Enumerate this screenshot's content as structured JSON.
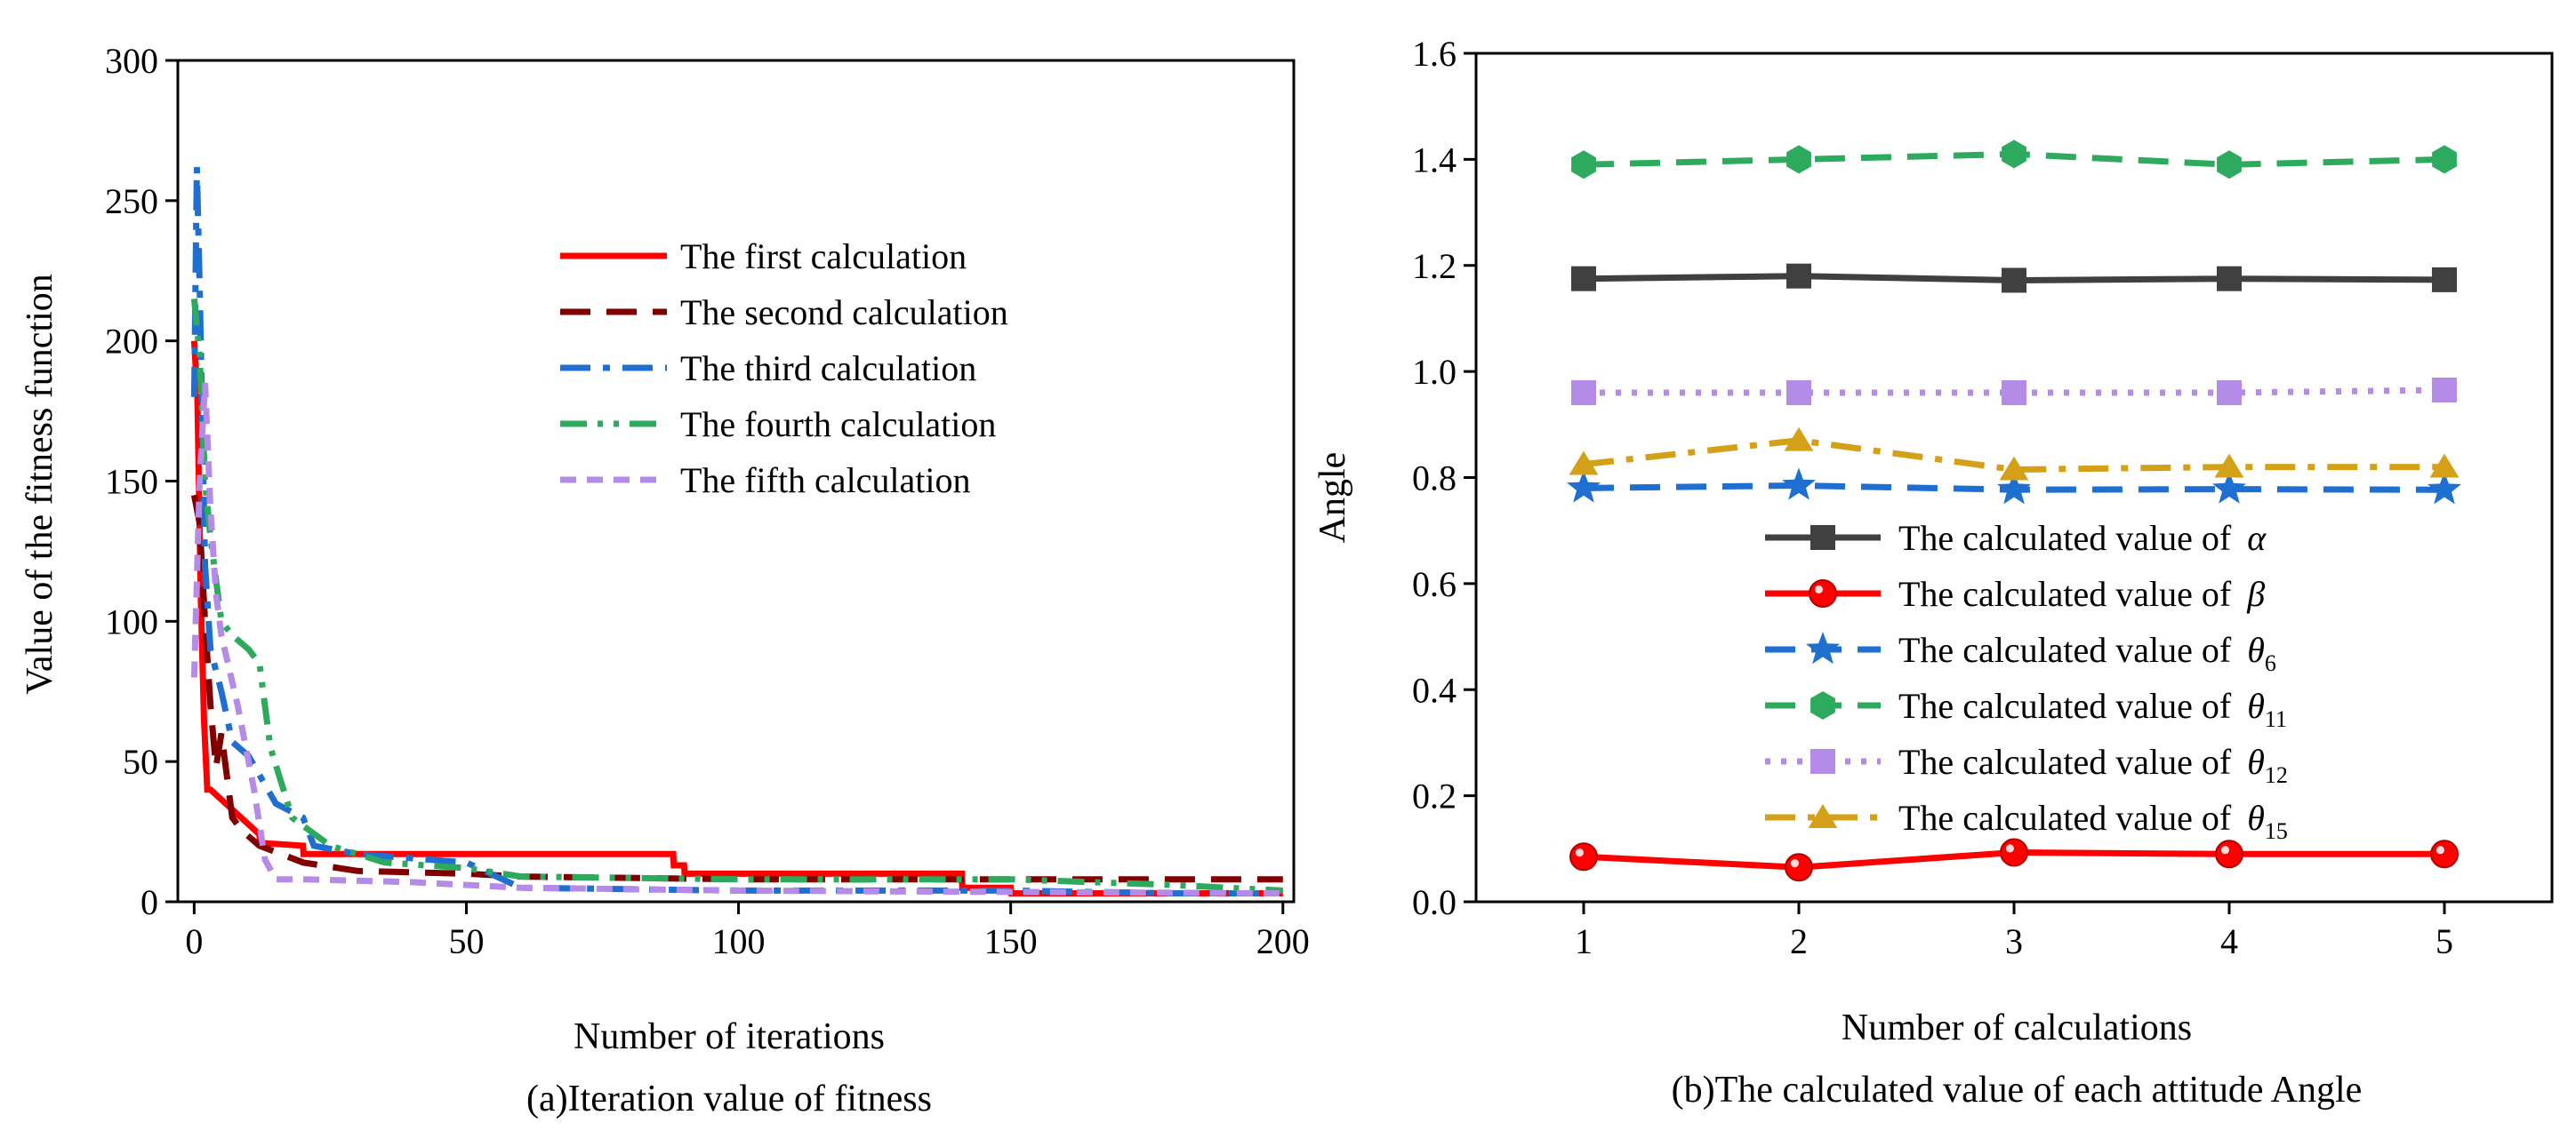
{
  "chart_data": [
    {
      "type": "line",
      "title": "",
      "caption": "(a)Iteration value of fitness",
      "xlabel": "Number of iterations",
      "ylabel": "Value of the fitness function",
      "xlim": [
        -3,
        202
      ],
      "ylim": [
        0,
        300
      ],
      "xticks": [
        0,
        50,
        100,
        150,
        200
      ],
      "yticks": [
        0,
        50,
        100,
        150,
        200,
        250,
        300
      ],
      "grid": false,
      "legend_position": "top-right",
      "series": [
        {
          "name": "The first calculation",
          "color": "#ff0000",
          "dash": "solid",
          "x": [
            0,
            0.6,
            1.2,
            1.8,
            2.4,
            3.0,
            12,
            12.1,
            20,
            20.1,
            88,
            88.1,
            90,
            90.1,
            141,
            141.1,
            150,
            150.1,
            200
          ],
          "y": [
            200,
            180,
            110,
            65,
            40,
            40,
            24,
            21,
            20,
            17,
            17,
            13,
            13,
            10,
            10,
            5,
            5,
            3,
            3
          ]
        },
        {
          "name": "The second calculation",
          "color": "#800000",
          "dash": "dashed",
          "x": [
            0,
            1,
            2,
            3,
            4,
            5,
            7,
            9,
            12,
            20,
            30,
            50,
            60,
            100,
            200
          ],
          "y": [
            145,
            135,
            100,
            70,
            48,
            60,
            30,
            25,
            20,
            14,
            11,
            10,
            9,
            8,
            8
          ]
        },
        {
          "name": "The third calculation",
          "color": "#1f6fd1",
          "dash": "dashdot",
          "x": [
            0,
            0.5,
            1,
            2,
            3,
            5,
            7,
            10,
            15,
            20,
            22,
            30,
            50,
            60,
            100,
            150,
            180,
            200
          ],
          "y": [
            180,
            262,
            220,
            120,
            90,
            75,
            57,
            52,
            35,
            30,
            20,
            17,
            14,
            5,
            4,
            4,
            3,
            3
          ]
        },
        {
          "name": "The fourth calculation",
          "color": "#2eaa5f",
          "dash": "dashdotdot",
          "x": [
            0,
            1,
            2,
            3,
            5,
            7,
            10,
            12,
            14,
            18,
            25,
            35,
            50,
            60,
            100,
            150,
            180,
            200
          ],
          "y": [
            215,
            195,
            150,
            130,
            100,
            95,
            90,
            85,
            55,
            30,
            20,
            14,
            12,
            9,
            8,
            8,
            6,
            4
          ]
        },
        {
          "name": "The fifth calculation",
          "color": "#b48be6",
          "dash": "shortdash",
          "x": [
            0,
            1,
            2,
            3,
            4,
            5,
            8,
            11,
            13,
            15,
            20,
            40,
            60,
            100,
            200
          ],
          "y": [
            80,
            150,
            185,
            140,
            110,
            95,
            70,
            40,
            15,
            8,
            8,
            7,
            5,
            4,
            3
          ]
        }
      ]
    },
    {
      "type": "line",
      "title": "",
      "caption": "(b)The calculated value of each attitude Angle",
      "xlabel": "Number of calculations",
      "ylabel": "Angle",
      "xlim": [
        0.5,
        5.5
      ],
      "ylim": [
        0,
        1.6
      ],
      "categories": [
        "1",
        "2",
        "3",
        "4",
        "5"
      ],
      "yticks": [
        "0.0",
        "0.2",
        "0.4",
        "0.6",
        "0.8",
        "1.0",
        "1.2",
        "1.4",
        "1.6"
      ],
      "grid": false,
      "legend_position": "lower-center",
      "legend_prefix": "The calculated value of",
      "series": [
        {
          "symbol": "α",
          "sub": "",
          "color": "#404040",
          "dash": "solid",
          "marker": "square",
          "values": [
            1.175,
            1.18,
            1.172,
            1.175,
            1.173
          ]
        },
        {
          "symbol": "β",
          "sub": "",
          "color": "#ff0000",
          "dash": "solid",
          "marker": "circle",
          "values": [
            0.085,
            0.065,
            0.093,
            0.09,
            0.09
          ]
        },
        {
          "symbol": "θ",
          "sub": "6",
          "color": "#1f6fd1",
          "dash": "dashed",
          "marker": "star",
          "values": [
            0.78,
            0.785,
            0.777,
            0.778,
            0.777
          ]
        },
        {
          "symbol": "θ",
          "sub": "11",
          "color": "#2eaa5f",
          "dash": "dashed",
          "marker": "hexagon",
          "values": [
            1.39,
            1.4,
            1.41,
            1.39,
            1.4
          ]
        },
        {
          "symbol": "θ",
          "sub": "12",
          "color": "#b48be6",
          "dash": "dotted",
          "marker": "square",
          "values": [
            0.96,
            0.96,
            0.96,
            0.96,
            0.965
          ]
        },
        {
          "symbol": "θ",
          "sub": "15",
          "color": "#d4a017",
          "dash": "dashdot",
          "marker": "triangle",
          "values": [
            0.825,
            0.87,
            0.815,
            0.82,
            0.82
          ]
        }
      ]
    }
  ]
}
